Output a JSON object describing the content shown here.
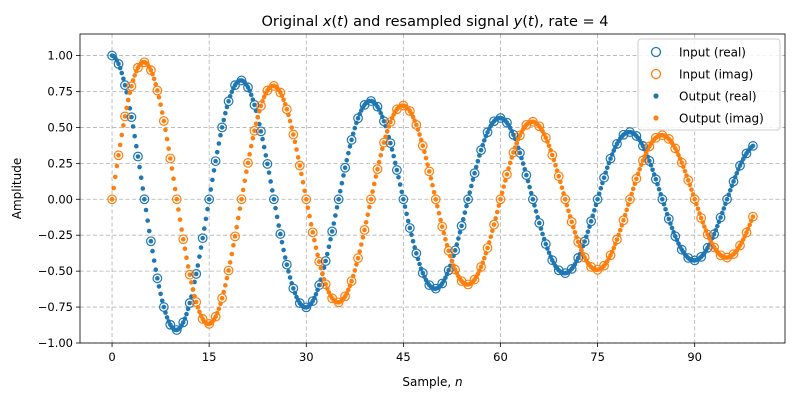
{
  "chart_data": {
    "type": "scatter",
    "title": {
      "prefix": "Original ",
      "x": "x",
      "mid1": "(",
      "t1": "t",
      "mid2": ") and resampled signal ",
      "y": "y",
      "mid3": "(",
      "t2": "t",
      "suffix": "), rate = 4"
    },
    "xlabel": {
      "text": "Sample, ",
      "var": "n"
    },
    "ylabel": "Amplitude",
    "xlim": [
      -4.95,
      103.95
    ],
    "ylim": [
      -1.0,
      1.15
    ],
    "xticks": [
      0,
      15,
      30,
      45,
      60,
      75,
      90
    ],
    "yticks": [
      -1.0,
      -0.75,
      -0.5,
      -0.25,
      0.0,
      0.25,
      0.5,
      0.75,
      1.0
    ],
    "ytick_labels": [
      "−1.00",
      "−0.75",
      "−0.50",
      "−0.25",
      "0.00",
      "0.25",
      "0.50",
      "0.75",
      "1.00"
    ],
    "grid": true,
    "legend_position": "upper-right",
    "signal": {
      "n_samples": 100,
      "frequency": 0.05,
      "decay": 0.0095,
      "rate": 4
    },
    "series": [
      {
        "name": "Input (real)",
        "marker": "open-circle",
        "color": "#1f77b4",
        "part": "real",
        "kind": "input"
      },
      {
        "name": "Input (imag)",
        "marker": "open-circle",
        "color": "#ff7f0e",
        "part": "imag",
        "kind": "input"
      },
      {
        "name": "Output (real)",
        "marker": "dot",
        "color": "#1f77b4",
        "part": "real",
        "kind": "output"
      },
      {
        "name": "Output (imag)",
        "marker": "dot",
        "color": "#ff7f0e",
        "part": "imag",
        "kind": "output"
      }
    ]
  }
}
